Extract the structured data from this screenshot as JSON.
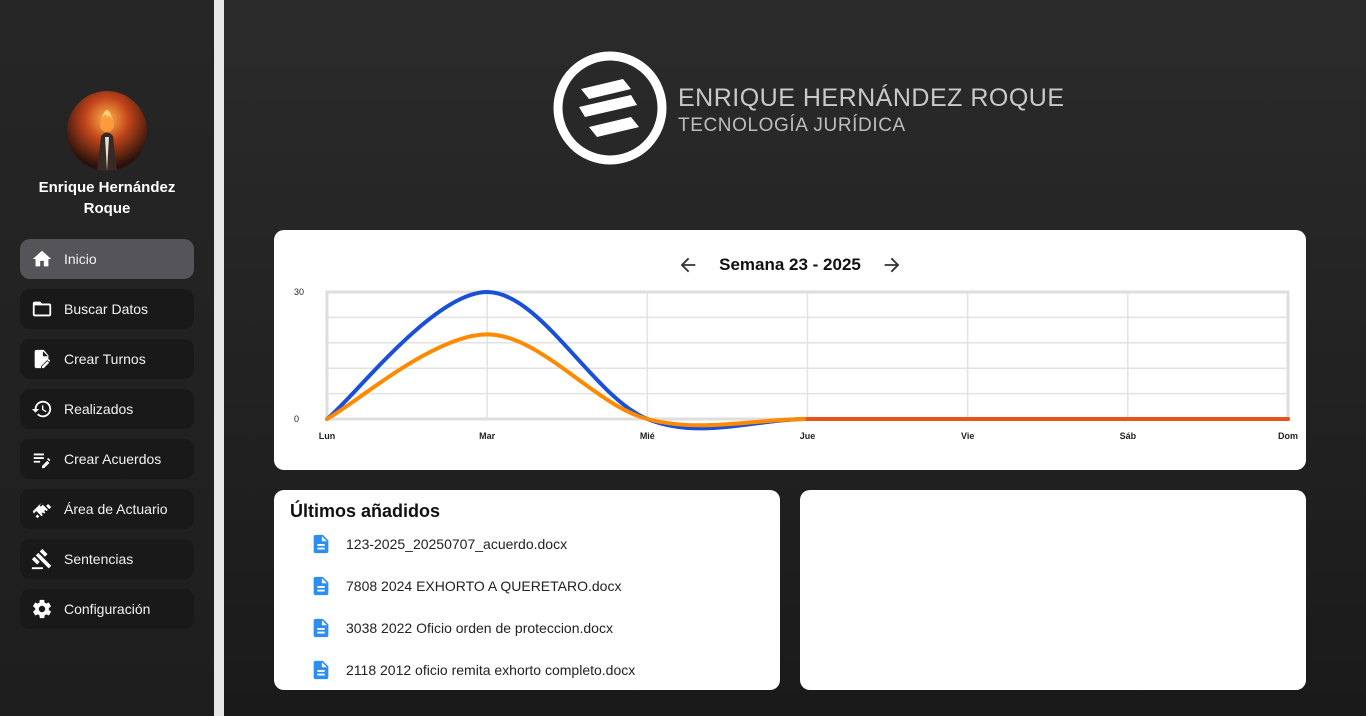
{
  "user": {
    "name": "Enrique Hernández Roque"
  },
  "nav": [
    {
      "label": "Inicio",
      "icon": "home-icon",
      "active": true
    },
    {
      "label": "Buscar Datos",
      "icon": "folder-icon"
    },
    {
      "label": "Crear Turnos",
      "icon": "file-edit-icon"
    },
    {
      "label": "Realizados",
      "icon": "history-icon"
    },
    {
      "label": "Crear Acuerdos",
      "icon": "edit-note-icon"
    },
    {
      "label": "Área de Actuario",
      "icon": "handshake-icon"
    },
    {
      "label": "Sentencias",
      "icon": "gavel-icon"
    },
    {
      "label": "Configuración",
      "icon": "gear-icon"
    }
  ],
  "brand": {
    "title": "ENRIQUE HERNÁNDEZ ROQUE",
    "subtitle": "TECNOLOGÍA JURÍDICA"
  },
  "chart": {
    "week_label": "Semana 23 - 2025"
  },
  "chart_data": {
    "type": "line",
    "categories": [
      "Lun",
      "Mar",
      "Mié",
      "Jue",
      "Vie",
      "Sáb",
      "Dom"
    ],
    "ylim": [
      0,
      30
    ],
    "yticks": [
      "0",
      "30"
    ],
    "grid": true,
    "series": [
      {
        "values": [
          0,
          30,
          0,
          0,
          0,
          0,
          0
        ],
        "color": "#1a4fd8"
      },
      {
        "values": [
          0,
          20,
          0,
          0,
          0,
          0,
          0
        ],
        "color": "#ff8a00"
      }
    ]
  },
  "recent": {
    "title": "Últimos añadidos",
    "files": [
      "123-2025_20250707_acuerdo.docx",
      "7808 2024 EXHORTO A QUERETARO.docx",
      "3038 2022 Oficio orden de proteccion.docx",
      "2118 2012 oficio remita exhorto completo.docx"
    ]
  }
}
